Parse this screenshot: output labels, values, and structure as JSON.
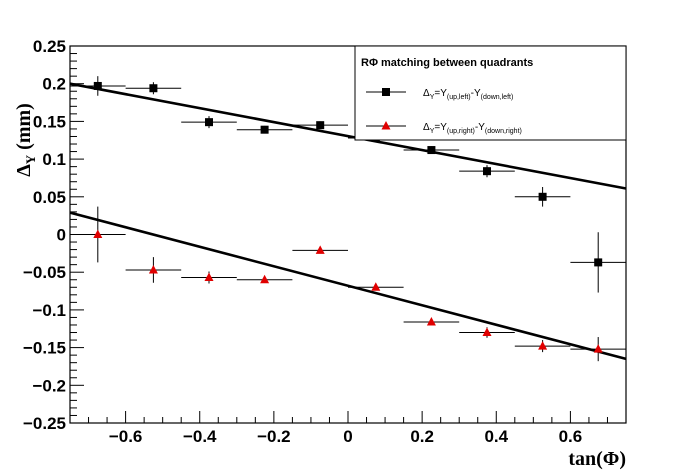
{
  "chart_data": {
    "type": "scatter",
    "xlabel": "tan(Φ)",
    "ylabel": "Δ",
    "ylabel_sub": "Y",
    "ylabel_unit": " (mm)",
    "xlim": [
      -0.75,
      0.75
    ],
    "ylim": [
      -0.25,
      0.25
    ],
    "xticks": [
      -0.6,
      -0.4,
      -0.2,
      0,
      0.2,
      0.4,
      0.6
    ],
    "xtick_labels": [
      "−0.6",
      "−0.4",
      "−0.2",
      "0",
      "0.2",
      "0.4",
      "0.6"
    ],
    "yticks": [
      -0.25,
      -0.2,
      -0.15,
      -0.1,
      -0.05,
      0,
      0.05,
      0.1,
      0.15,
      0.2,
      0.25
    ],
    "ytick_labels": [
      "−0.25",
      "−0.2",
      "−0.15",
      "−0.1",
      "−0.05",
      "0",
      "0.05",
      "0.1",
      "0.15",
      "0.2",
      "0.25"
    ],
    "grid": false,
    "legend": {
      "title": "RΦ matching between quadrants",
      "placement": "top-right"
    },
    "series": [
      {
        "name_main": "Δ",
        "name_parts": [
          {
            "t": "Y",
            "sub": true
          },
          {
            "t": "=Y",
            "sub": false
          },
          {
            "t": "(up,left)",
            "sub": true
          },
          {
            "t": "-Y",
            "sub": false
          },
          {
            "t": "(down,left)",
            "sub": true
          }
        ],
        "marker": "square",
        "color": "#000000",
        "points": [
          {
            "x": -0.675,
            "y": 0.197,
            "xerr": 0.075,
            "yerr": 0.013
          },
          {
            "x": -0.525,
            "y": 0.194,
            "xerr": 0.075,
            "yerr": 0.008
          },
          {
            "x": -0.375,
            "y": 0.149,
            "xerr": 0.075,
            "yerr": 0.008
          },
          {
            "x": -0.225,
            "y": 0.139,
            "xerr": 0.075,
            "yerr": 0.005
          },
          {
            "x": -0.075,
            "y": 0.145,
            "xerr": 0.075,
            "yerr": 0.005
          },
          {
            "x": 0.075,
            "y": 0.128,
            "xerr": 0.075,
            "yerr": 0.004
          },
          {
            "x": 0.225,
            "y": 0.112,
            "xerr": 0.075,
            "yerr": 0.005
          },
          {
            "x": 0.375,
            "y": 0.084,
            "xerr": 0.075,
            "yerr": 0.008
          },
          {
            "x": 0.525,
            "y": 0.05,
            "xerr": 0.075,
            "yerr": 0.013
          },
          {
            "x": 0.675,
            "y": -0.037,
            "xerr": 0.075,
            "yerr": 0.04
          }
        ],
        "fit": {
          "x1": -0.75,
          "y1": 0.2,
          "x2": 0.75,
          "y2": 0.061
        }
      },
      {
        "name_main": "Δ",
        "name_parts": [
          {
            "t": "Y",
            "sub": true
          },
          {
            "t": "=Y",
            "sub": false
          },
          {
            "t": "(up,right)",
            "sub": true
          },
          {
            "t": "-Y",
            "sub": false
          },
          {
            "t": "(down,right)",
            "sub": true
          }
        ],
        "marker": "triangle",
        "color": "#e00000",
        "points": [
          {
            "x": -0.675,
            "y": 0.0,
            "xerr": 0.075,
            "yerr": 0.037
          },
          {
            "x": -0.525,
            "y": -0.047,
            "xerr": 0.075,
            "yerr": 0.017
          },
          {
            "x": -0.375,
            "y": -0.057,
            "xerr": 0.075,
            "yerr": 0.008
          },
          {
            "x": -0.225,
            "y": -0.06,
            "xerr": 0.075,
            "yerr": 0.004
          },
          {
            "x": -0.075,
            "y": -0.021,
            "xerr": 0.075,
            "yerr": 0.004
          },
          {
            "x": 0.075,
            "y": -0.07,
            "xerr": 0.075,
            "yerr": 0.004
          },
          {
            "x": 0.225,
            "y": -0.116,
            "xerr": 0.075,
            "yerr": 0.004
          },
          {
            "x": 0.375,
            "y": -0.13,
            "xerr": 0.075,
            "yerr": 0.007
          },
          {
            "x": 0.525,
            "y": -0.148,
            "xerr": 0.075,
            "yerr": 0.008
          },
          {
            "x": 0.675,
            "y": -0.152,
            "xerr": 0.075,
            "yerr": 0.016
          }
        ],
        "fit": {
          "x1": -0.75,
          "y1": 0.029,
          "x2": 0.75,
          "y2": -0.165
        }
      }
    ]
  }
}
